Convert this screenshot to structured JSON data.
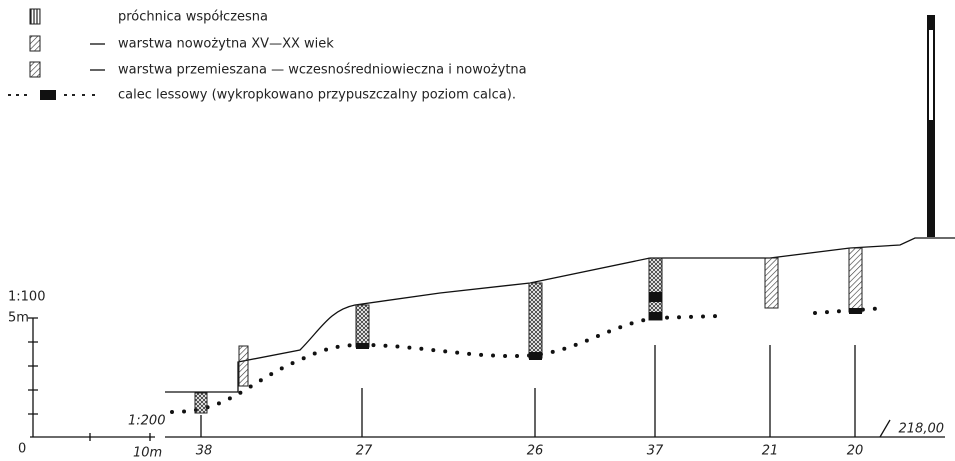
{
  "legend": {
    "items": [
      {
        "label": "próchnica współczesna"
      },
      {
        "label": "warstwa nowożytna XV—XX wiek"
      },
      {
        "label": "warstwa przemieszana — wczesnośredniowieczna i nowożytna"
      },
      {
        "label": "calec lessowy (wykropkowano przypuszczalny poziom calca)."
      }
    ]
  },
  "scale": {
    "vertical_ratio": "1:100",
    "vertical_length": "5m",
    "horizontal_ratio": "1:200",
    "zero": "0",
    "horizontal_length": "10m"
  },
  "datum": "218,00",
  "boreholes": [
    {
      "label": "38"
    },
    {
      "label": "27"
    },
    {
      "label": "26"
    },
    {
      "label": "37"
    },
    {
      "label": "21"
    },
    {
      "label": "20"
    }
  ]
}
